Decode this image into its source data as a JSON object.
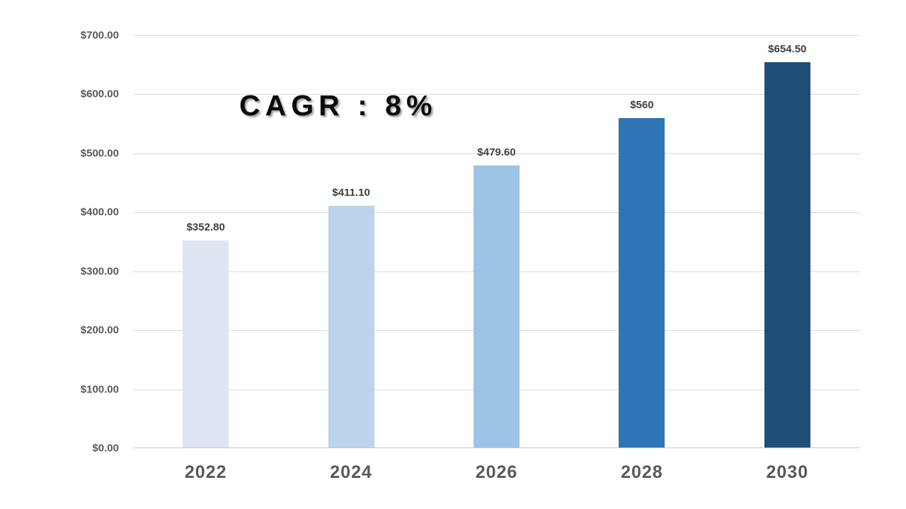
{
  "chart_data": {
    "type": "bar",
    "title": "",
    "annotation": "CAGR : 8%",
    "categories": [
      "2022",
      "2024",
      "2026",
      "2028",
      "2030"
    ],
    "values": [
      352.8,
      411.1,
      479.6,
      560,
      654.5
    ],
    "value_labels": [
      "$352.80",
      "$411.10",
      "$479.60",
      "$560",
      "$654.50"
    ],
    "bar_colors": [
      "#dce6f2",
      "#bcd4ea",
      "#9dc3e6",
      "#2e75b6",
      "#1f4e79"
    ],
    "xlabel": "",
    "ylabel": "",
    "ylim": [
      0,
      700
    ],
    "ytick_step": 100,
    "yticks": [
      0,
      100,
      200,
      300,
      400,
      500,
      600,
      700
    ],
    "ytick_labels": [
      "$0.00",
      "$100.00",
      "$200.00",
      "$300.00",
      "$400.00",
      "$500.00",
      "$600.00",
      "$700.00"
    ],
    "grid": true,
    "legend": false
  },
  "colors": {
    "background": "#ffffff",
    "gridline": "#d9d9d9",
    "axis_line": "#c9c9c9",
    "ytick_text": "#595959",
    "xtick_text": "#595959",
    "value_label_text": "#404040",
    "annotation_text": "#0a0a0a"
  }
}
